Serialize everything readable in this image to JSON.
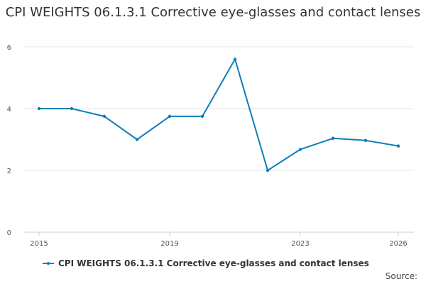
{
  "chart_data": {
    "type": "line",
    "title": "CPI WEIGHTS 06.1.3.1 Corrective eye-glasses and contact lenses",
    "xlabel": "",
    "ylabel": "",
    "x": [
      2015,
      2016,
      2017,
      2018,
      2019,
      2020,
      2021,
      2022,
      2023,
      2024,
      2025,
      2026
    ],
    "series": [
      {
        "name": "CPI WEIGHTS 06.1.3.1 Corrective eye-glasses and contact lenses",
        "values": [
          4.0,
          4.0,
          3.75,
          3.0,
          3.75,
          3.75,
          5.6,
          2.0,
          2.68,
          3.04,
          2.97,
          2.79
        ],
        "color": "#0c7ebb"
      }
    ],
    "xlim": [
      2015,
      2026
    ],
    "ylim": [
      0,
      6
    ],
    "xticks": [
      2015,
      2019,
      2023,
      2026
    ],
    "yticks": [
      0,
      2,
      4,
      6
    ],
    "grid": true,
    "legend": "bottom-center"
  },
  "source_label": "Source:"
}
